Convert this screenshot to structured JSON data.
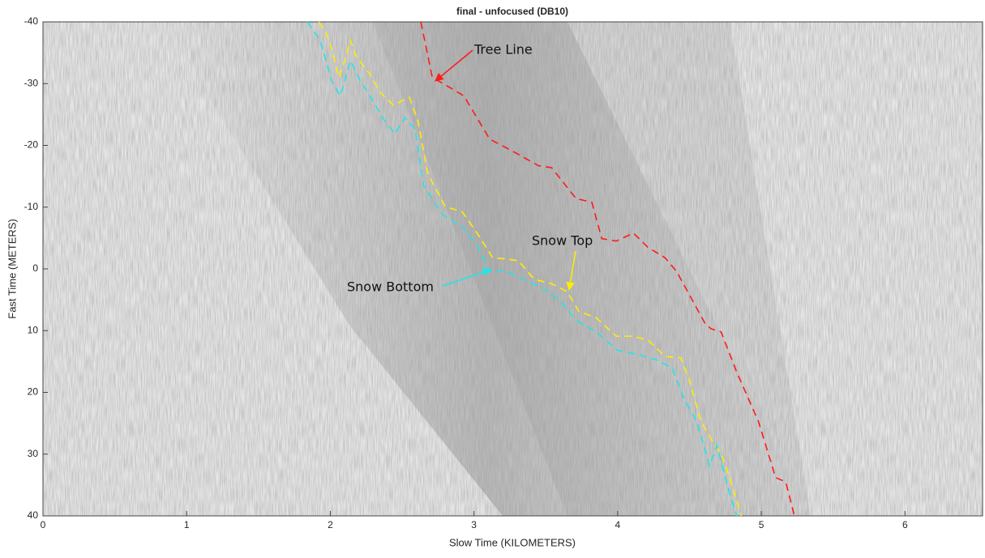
{
  "chart_data": {
    "type": "line",
    "title": "final - unfocused (DB10)",
    "x_label": "Slow Time (KILOMETERS)",
    "y_label": "Fast Time (METERS)",
    "xlim": [
      0,
      6.54
    ],
    "ylim": [
      -40,
      40
    ],
    "y_direction": "reverse",
    "xticks": [
      0,
      1,
      2,
      3,
      4,
      5,
      6
    ],
    "yticks": [
      -40,
      -30,
      -20,
      -10,
      0,
      10,
      20,
      30,
      40
    ],
    "line_style": "dashed",
    "series": [
      {
        "name": "Tree Line",
        "color": "#ff1a1a",
        "x": [
          2.63,
          2.71,
          2.83,
          2.93,
          3.11,
          3.25,
          3.45,
          3.54,
          3.71,
          3.82,
          3.89,
          3.99,
          4.11,
          4.21,
          4.33,
          4.41,
          4.61,
          4.65,
          4.72,
          4.83,
          4.98,
          5.1,
          5.17,
          5.23
        ],
        "values": [
          -40,
          -31,
          -29.4,
          -28,
          -21,
          -19.3,
          -16.7,
          -16.4,
          -11.4,
          -10.8,
          -4.9,
          -4.5,
          -5.8,
          -3.5,
          -1.8,
          0.4,
          8.9,
          9.7,
          10.2,
          16.8,
          24.7,
          33.8,
          34.5,
          40
        ]
      },
      {
        "name": "Snow Top",
        "color": "#ffee00",
        "x": [
          1.92,
          1.97,
          2.01,
          2.06,
          2.1,
          2.14,
          2.18,
          2.27,
          2.35,
          2.44,
          2.49,
          2.55,
          2.61,
          2.68,
          2.8,
          2.92,
          3.03,
          3.13,
          3.23,
          3.31,
          3.42,
          3.54,
          3.65,
          3.73,
          3.85,
          3.99,
          4.1,
          4.21,
          4.33,
          4.44,
          4.5,
          4.58,
          4.66,
          4.72,
          4.78,
          4.86
        ],
        "values": [
          -40,
          -38.3,
          -35.7,
          -31,
          -33.7,
          -37,
          -34.4,
          -31.7,
          -28.5,
          -26.5,
          -27.1,
          -27.8,
          -23.9,
          -15.3,
          -10.1,
          -9.2,
          -5.5,
          -1.8,
          -1.6,
          -1.3,
          1.7,
          2.4,
          3.7,
          6.9,
          7.9,
          10.9,
          10.9,
          11.5,
          14.2,
          14.4,
          18.1,
          24.7,
          27.9,
          29.9,
          33.8,
          40
        ]
      },
      {
        "name": "Snow Bottom",
        "color": "#22e5e5",
        "x": [
          1.84,
          1.93,
          2.01,
          2.07,
          2.14,
          2.21,
          2.3,
          2.38,
          2.45,
          2.52,
          2.59,
          2.65,
          2.78,
          2.92,
          3.03,
          3.11,
          3.23,
          3.34,
          3.47,
          3.59,
          3.71,
          3.85,
          4.0,
          4.13,
          4.28,
          4.38,
          4.47,
          4.55,
          4.64,
          4.69,
          4.78,
          4.83
        ],
        "values": [
          -40,
          -37,
          -30.4,
          -28,
          -33.7,
          -30.4,
          -27.1,
          -23.9,
          -21.9,
          -24.5,
          -22.6,
          -13.4,
          -8.8,
          -6.8,
          -3.5,
          0.4,
          0.4,
          1.7,
          3,
          5,
          8.3,
          10.2,
          13.2,
          13.8,
          14.8,
          16.1,
          21.4,
          24.7,
          31.9,
          28.6,
          36.5,
          40
        ]
      }
    ]
  }
}
